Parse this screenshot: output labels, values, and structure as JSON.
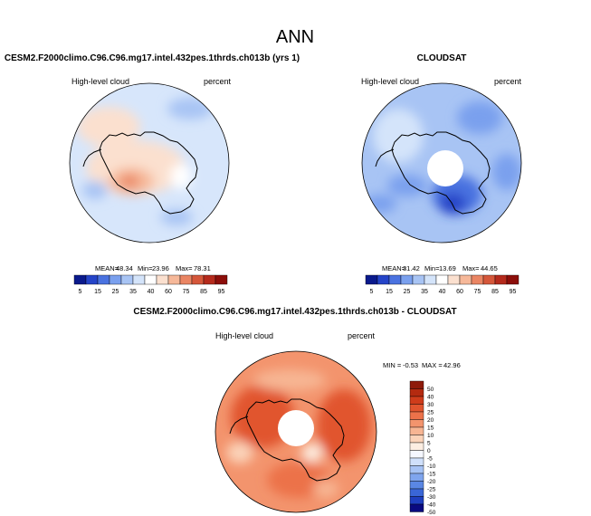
{
  "page": {
    "title": "ANN"
  },
  "colors": {
    "bwr_11": [
      "#0a1a8c",
      "#2544c8",
      "#4a72e0",
      "#7aa0ee",
      "#a8c4f4",
      "#d4e4fa",
      "#ffffff",
      "#fbe0cf",
      "#f6b899",
      "#ea8563",
      "#d5573a",
      "#b52a1c",
      "#8c0e0a"
    ],
    "diff_levels": [
      "#0a0a80",
      "#1f3fbf",
      "#3a66d6",
      "#5a87e4",
      "#7fa5ee",
      "#a7c3f5",
      "#d0e0fb",
      "#f5f7ff",
      "#fdeee2",
      "#fbd3b9",
      "#f7b593",
      "#f3946d",
      "#ec724a",
      "#e1552f",
      "#cf3c1b",
      "#b42a10",
      "#8e1a0a"
    ],
    "land_outline": "#000000"
  },
  "chart_data": [
    {
      "type": "heatmap",
      "projection": "south-polar-stereographic",
      "title": "CESM2.F2000climo.C96.C96.mg17.intel.432pes.1thrds.ch013b (yrs 1)",
      "left_label": "High-level cloud",
      "right_label": "percent",
      "stats": {
        "mean_label": "MEAN=",
        "mean": "48.34",
        "min_label": "Min=",
        "min": "23.96",
        "max_label": "Max=",
        "max": "78.31"
      },
      "colorbar": {
        "orientation": "horizontal",
        "ticks": [
          "5",
          "15",
          "25",
          "35",
          "40",
          "60",
          "75",
          "85",
          "95"
        ],
        "levels": [
          0,
          5,
          10,
          15,
          20,
          25,
          30,
          35,
          40,
          60,
          65,
          75,
          80,
          85,
          90,
          95,
          100
        ]
      },
      "field_description_colors": [
        "light-blue ocean 40-60",
        "peach land 60-75",
        "red maximum over West Antarctica ~75"
      ]
    },
    {
      "type": "heatmap",
      "projection": "south-polar-stereographic",
      "title": "CLOUDSAT",
      "left_label": "High-level cloud",
      "right_label": "percent",
      "stats": {
        "mean_label": "MEAN=",
        "mean": "31.42",
        "min_label": "Min=",
        "min": "13.69",
        "max_label": "Max=",
        "max": "44.65"
      },
      "colorbar": {
        "orientation": "horizontal",
        "ticks": [
          "5",
          "15",
          "25",
          "35",
          "40",
          "60",
          "75",
          "85",
          "95"
        ]
      },
      "missing_pole_hole": true
    },
    {
      "type": "heatmap",
      "projection": "south-polar-stereographic",
      "title": "CESM2.F2000climo.C96.C96.mg17.intel.432pes.1thrds.ch013b - CLOUDSAT",
      "left_label": "High-level cloud",
      "right_label": "percent",
      "stats": {
        "min_label": "MIN =",
        "min": "-0.53",
        "max_label": "MAX =",
        "max": "42.96"
      },
      "colorbar": {
        "orientation": "vertical",
        "ticks": [
          "50",
          "40",
          "30",
          "25",
          "20",
          "15",
          "10",
          "5",
          "0",
          "-5",
          "-10",
          "-15",
          "-20",
          "-25",
          "-30",
          "-40",
          "-50"
        ]
      },
      "missing_pole_hole": true
    }
  ]
}
